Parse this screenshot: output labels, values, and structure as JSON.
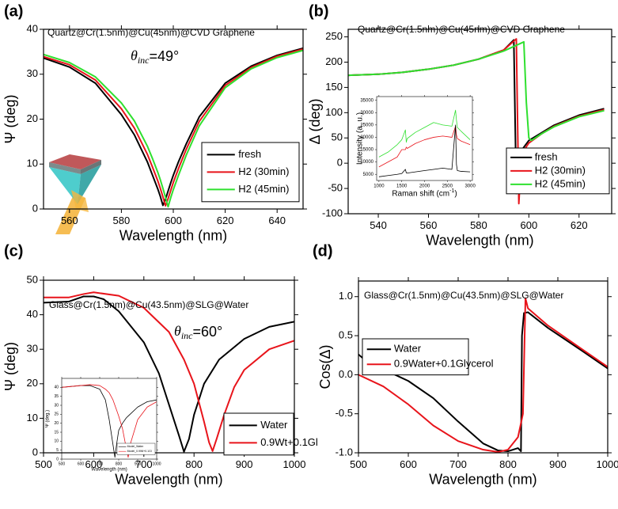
{
  "chart_data": [
    {
      "type": "line",
      "label": "(a)",
      "annotation": "Quartz@Cr(1.5nm)@Cu(45nm)@CVD Graphene",
      "theta": {
        "symbol": "θ",
        "subscript": "inc",
        "value": "=49°"
      },
      "xlabel": "Wavelength (nm)",
      "ylabel": "Ψ (deg)",
      "xlim": [
        550,
        650
      ],
      "xticks": [
        560,
        580,
        600,
        620,
        640
      ],
      "ylim": [
        0,
        40
      ],
      "yticks": [
        0,
        10,
        20,
        30,
        40
      ],
      "legend": "lower right",
      "x": [
        550,
        560,
        570,
        580,
        585,
        590,
        592,
        594,
        595,
        596,
        597,
        598,
        599,
        600,
        602,
        605,
        610,
        620,
        630,
        640,
        650
      ],
      "series": [
        {
          "name": "fresh",
          "color": "#000000",
          "values": [
            33.6,
            31.6,
            28.0,
            21.0,
            16.5,
            10.5,
            7.5,
            4.5,
            2.8,
            0.8,
            2.2,
            4.0,
            5.8,
            7.5,
            10.5,
            14.5,
            20.5,
            28.0,
            31.8,
            34.2,
            35.8
          ]
        },
        {
          "name": "H2 (30min)",
          "color": "#e8141b",
          "values": [
            33.9,
            32.1,
            28.7,
            22.3,
            18.0,
            12.2,
            9.3,
            6.3,
            4.6,
            2.7,
            0.7,
            2.3,
            4.1,
            5.9,
            9.0,
            13.3,
            19.5,
            27.5,
            31.5,
            34.0,
            35.6
          ]
        },
        {
          "name": "H2 (45min)",
          "color": "#2fe02f",
          "values": [
            34.4,
            32.6,
            29.4,
            23.6,
            19.6,
            14.0,
            11.2,
            8.2,
            6.5,
            4.6,
            2.6,
            0.5,
            2.5,
            4.3,
            7.5,
            12.0,
            18.5,
            27.0,
            31.2,
            33.7,
            35.3
          ]
        }
      ]
    },
    {
      "type": "line",
      "label": "(b)",
      "annotation": "Quartz@Cr(1.5nm)@Cu(45nm)@CVD Graphene",
      "xlabel": "Wavelength (nm)",
      "ylabel": "Δ (deg)",
      "xlim": [
        528,
        633
      ],
      "xticks": [
        540,
        560,
        580,
        600,
        620
      ],
      "ylim": [
        -100,
        265
      ],
      "yticks": [
        -100,
        -50,
        0,
        50,
        100,
        150,
        200,
        250
      ],
      "legend": "lower right",
      "series": [
        {
          "name": "fresh",
          "color": "#000000",
          "x": [
            528,
            540,
            550,
            560,
            570,
            580,
            590,
            594,
            595,
            596,
            597,
            600,
            605,
            610,
            620,
            630
          ],
          "values": [
            174,
            176,
            180,
            186,
            194,
            206,
            224,
            244,
            -60,
            -50,
            25,
            45,
            60,
            75,
            95,
            108
          ]
        },
        {
          "name": "H2 (30min)",
          "color": "#e8141b",
          "x": [
            528,
            540,
            550,
            560,
            570,
            580,
            590,
            595,
            596,
            597,
            598,
            600,
            605,
            610,
            620,
            630
          ],
          "values": [
            174,
            176,
            180,
            186,
            194,
            206,
            224,
            246,
            -80,
            10,
            25,
            40,
            58,
            73,
            93,
            106
          ]
        },
        {
          "name": "H2 (45min)",
          "color": "#2fe02f",
          "x": [
            528,
            540,
            550,
            560,
            570,
            580,
            590,
            598,
            599,
            600,
            601,
            605,
            610,
            620,
            630
          ],
          "values": [
            174,
            176,
            180,
            186,
            194,
            206,
            222,
            240,
            120,
            50,
            45,
            58,
            72,
            92,
            104
          ]
        }
      ]
    },
    {
      "type": "line",
      "xlabel": {
        "text": "Raman shift (cm",
        "sup": "-1",
        "tail": ")"
      },
      "ylabel": "Intensity (a. u.)",
      "xlim": [
        950,
        3050
      ],
      "xticks": [
        1000,
        1500,
        2000,
        2500,
        3000
      ],
      "ylim": [
        2500,
        36500
      ],
      "yticks": [
        5000,
        10000,
        15000,
        20000,
        25000,
        30000,
        35000
      ],
      "x": [
        1000,
        1200,
        1400,
        1500,
        1580,
        1600,
        1620,
        1800,
        2000,
        2200,
        2400,
        2600,
        2680,
        2700,
        2720,
        2800,
        3000
      ],
      "series": [
        {
          "color": "#2fe02f",
          "values": [
            12000,
            14000,
            17000,
            19000,
            23000,
            18000,
            19500,
            22000,
            24000,
            26000,
            25000,
            24500,
            31000,
            27000,
            24000,
            22500,
            19000
          ]
        },
        {
          "color": "#e8141b",
          "values": [
            8000,
            10000,
            12000,
            15000,
            15000,
            16000,
            15500,
            17500,
            19000,
            20000,
            20500,
            20000,
            24500,
            21000,
            19500,
            18500,
            17000
          ]
        },
        {
          "color": "#000000",
          "values": [
            4000,
            4500,
            5000,
            5300,
            7000,
            5600,
            5500,
            6000,
            6500,
            7000,
            7500,
            7000,
            25000,
            9000,
            6500,
            6200,
            6000
          ]
        }
      ]
    },
    {
      "type": "line",
      "label": "(c)",
      "annotation": "Glass@Cr(1.5nm)@Cu(43.5nm)@SLG@Water",
      "theta": {
        "symbol": "θ",
        "subscript": "inc",
        "value": "=60°"
      },
      "xlabel": "Wavelength (nm)",
      "ylabel": "Ψ (deg)",
      "xlim": [
        500,
        1000
      ],
      "xticks": [
        500,
        600,
        700,
        800,
        900,
        1000
      ],
      "ylim": [
        0,
        50
      ],
      "yticks": [
        0,
        10,
        20,
        30,
        40,
        50
      ],
      "legend": "lower right",
      "series": [
        {
          "name": "Water",
          "color": "#000000",
          "x": [
            500,
            550,
            580,
            600,
            620,
            650,
            700,
            730,
            750,
            770,
            780,
            790,
            800,
            820,
            850,
            900,
            950,
            1000
          ],
          "values": [
            43.5,
            43.8,
            45.3,
            45.3,
            44.5,
            41,
            32,
            23,
            14,
            5,
            0.3,
            4,
            11,
            20,
            27,
            33,
            36.5,
            38
          ]
        },
        {
          "name": "0.9Wt+0.1Gl",
          "color": "#e8141b",
          "x": [
            500,
            550,
            580,
            600,
            650,
            700,
            750,
            780,
            800,
            820,
            830,
            837,
            845,
            860,
            880,
            900,
            950,
            1000
          ],
          "values": [
            45,
            45,
            46,
            46.5,
            45.5,
            42,
            35,
            27,
            20,
            9,
            3,
            0.5,
            4,
            11,
            19,
            24,
            30,
            32.5
          ]
        }
      ]
    },
    {
      "type": "line",
      "xlabel": "Wavelength (nm)",
      "ylabel": "Ψ (deg.)",
      "xlim": [
        500,
        1000
      ],
      "xticks": [
        500,
        600,
        700,
        800,
        900,
        1000
      ],
      "ylim": [
        0,
        45
      ],
      "yticks": [
        0,
        5,
        10,
        15,
        20,
        25,
        30,
        35,
        40
      ],
      "legend": "lower right",
      "x": [
        500,
        550,
        600,
        650,
        700,
        730,
        750,
        770,
        780,
        790,
        800,
        820,
        840,
        850,
        860,
        900,
        950,
        1000
      ],
      "series": [
        {
          "name": "Model_Water",
          "color": "#000000",
          "values": [
            40,
            40.5,
            41,
            41,
            39,
            33,
            22,
            8,
            1,
            9,
            16,
            20,
            23,
            24,
            25,
            29,
            32,
            33
          ]
        },
        {
          "name": "Model_0.9Wt+0.1Gl",
          "color": "#e8141b",
          "values": [
            40,
            40.5,
            41,
            41.5,
            41,
            39,
            37,
            33,
            30,
            27,
            24,
            17,
            6,
            1,
            8,
            22,
            29,
            32
          ]
        }
      ]
    },
    {
      "type": "line",
      "label": "(d)",
      "annotation": "Glass@Cr(1.5nm)@Cu(43.5nm)@SLG@Water",
      "xlabel": "Wavelength (nm)",
      "ylabel": "Cos(Δ)",
      "xlim": [
        500,
        1000
      ],
      "xticks": [
        500,
        600,
        700,
        800,
        900,
        1000
      ],
      "ylim": [
        -1,
        1.2
      ],
      "yticks": [
        {
          "value": -1,
          "label": "-1.0"
        },
        {
          "value": -0.5,
          "label": "-0.5"
        },
        {
          "value": 0,
          "label": "0.0"
        },
        {
          "value": 0.5,
          "label": "0.5"
        },
        {
          "value": 1,
          "label": "1.0"
        }
      ],
      "legend": "upper left",
      "series": [
        {
          "name": "Water",
          "color": "#000000",
          "x": [
            500,
            520,
            550,
            600,
            650,
            700,
            750,
            780,
            800,
            820,
            826,
            828,
            832,
            840,
            880,
            950,
            1000
          ],
          "values": [
            0.26,
            0.15,
            0.07,
            -0.08,
            -0.3,
            -0.6,
            -0.88,
            -0.97,
            -0.98,
            -0.94,
            -0.98,
            0.5,
            0.79,
            0.8,
            0.6,
            0.3,
            0.08
          ]
        },
        {
          "name": "0.9Water+0.1Glycerol",
          "color": "#e8141b",
          "x": [
            500,
            550,
            600,
            650,
            700,
            750,
            780,
            800,
            820,
            830,
            835,
            840,
            880,
            950,
            1000
          ],
          "values": [
            0.0,
            -0.15,
            -0.38,
            -0.65,
            -0.85,
            -0.96,
            -0.99,
            -0.96,
            -0.8,
            -0.5,
            0.98,
            0.85,
            0.63,
            0.32,
            0.1
          ]
        }
      ]
    }
  ]
}
